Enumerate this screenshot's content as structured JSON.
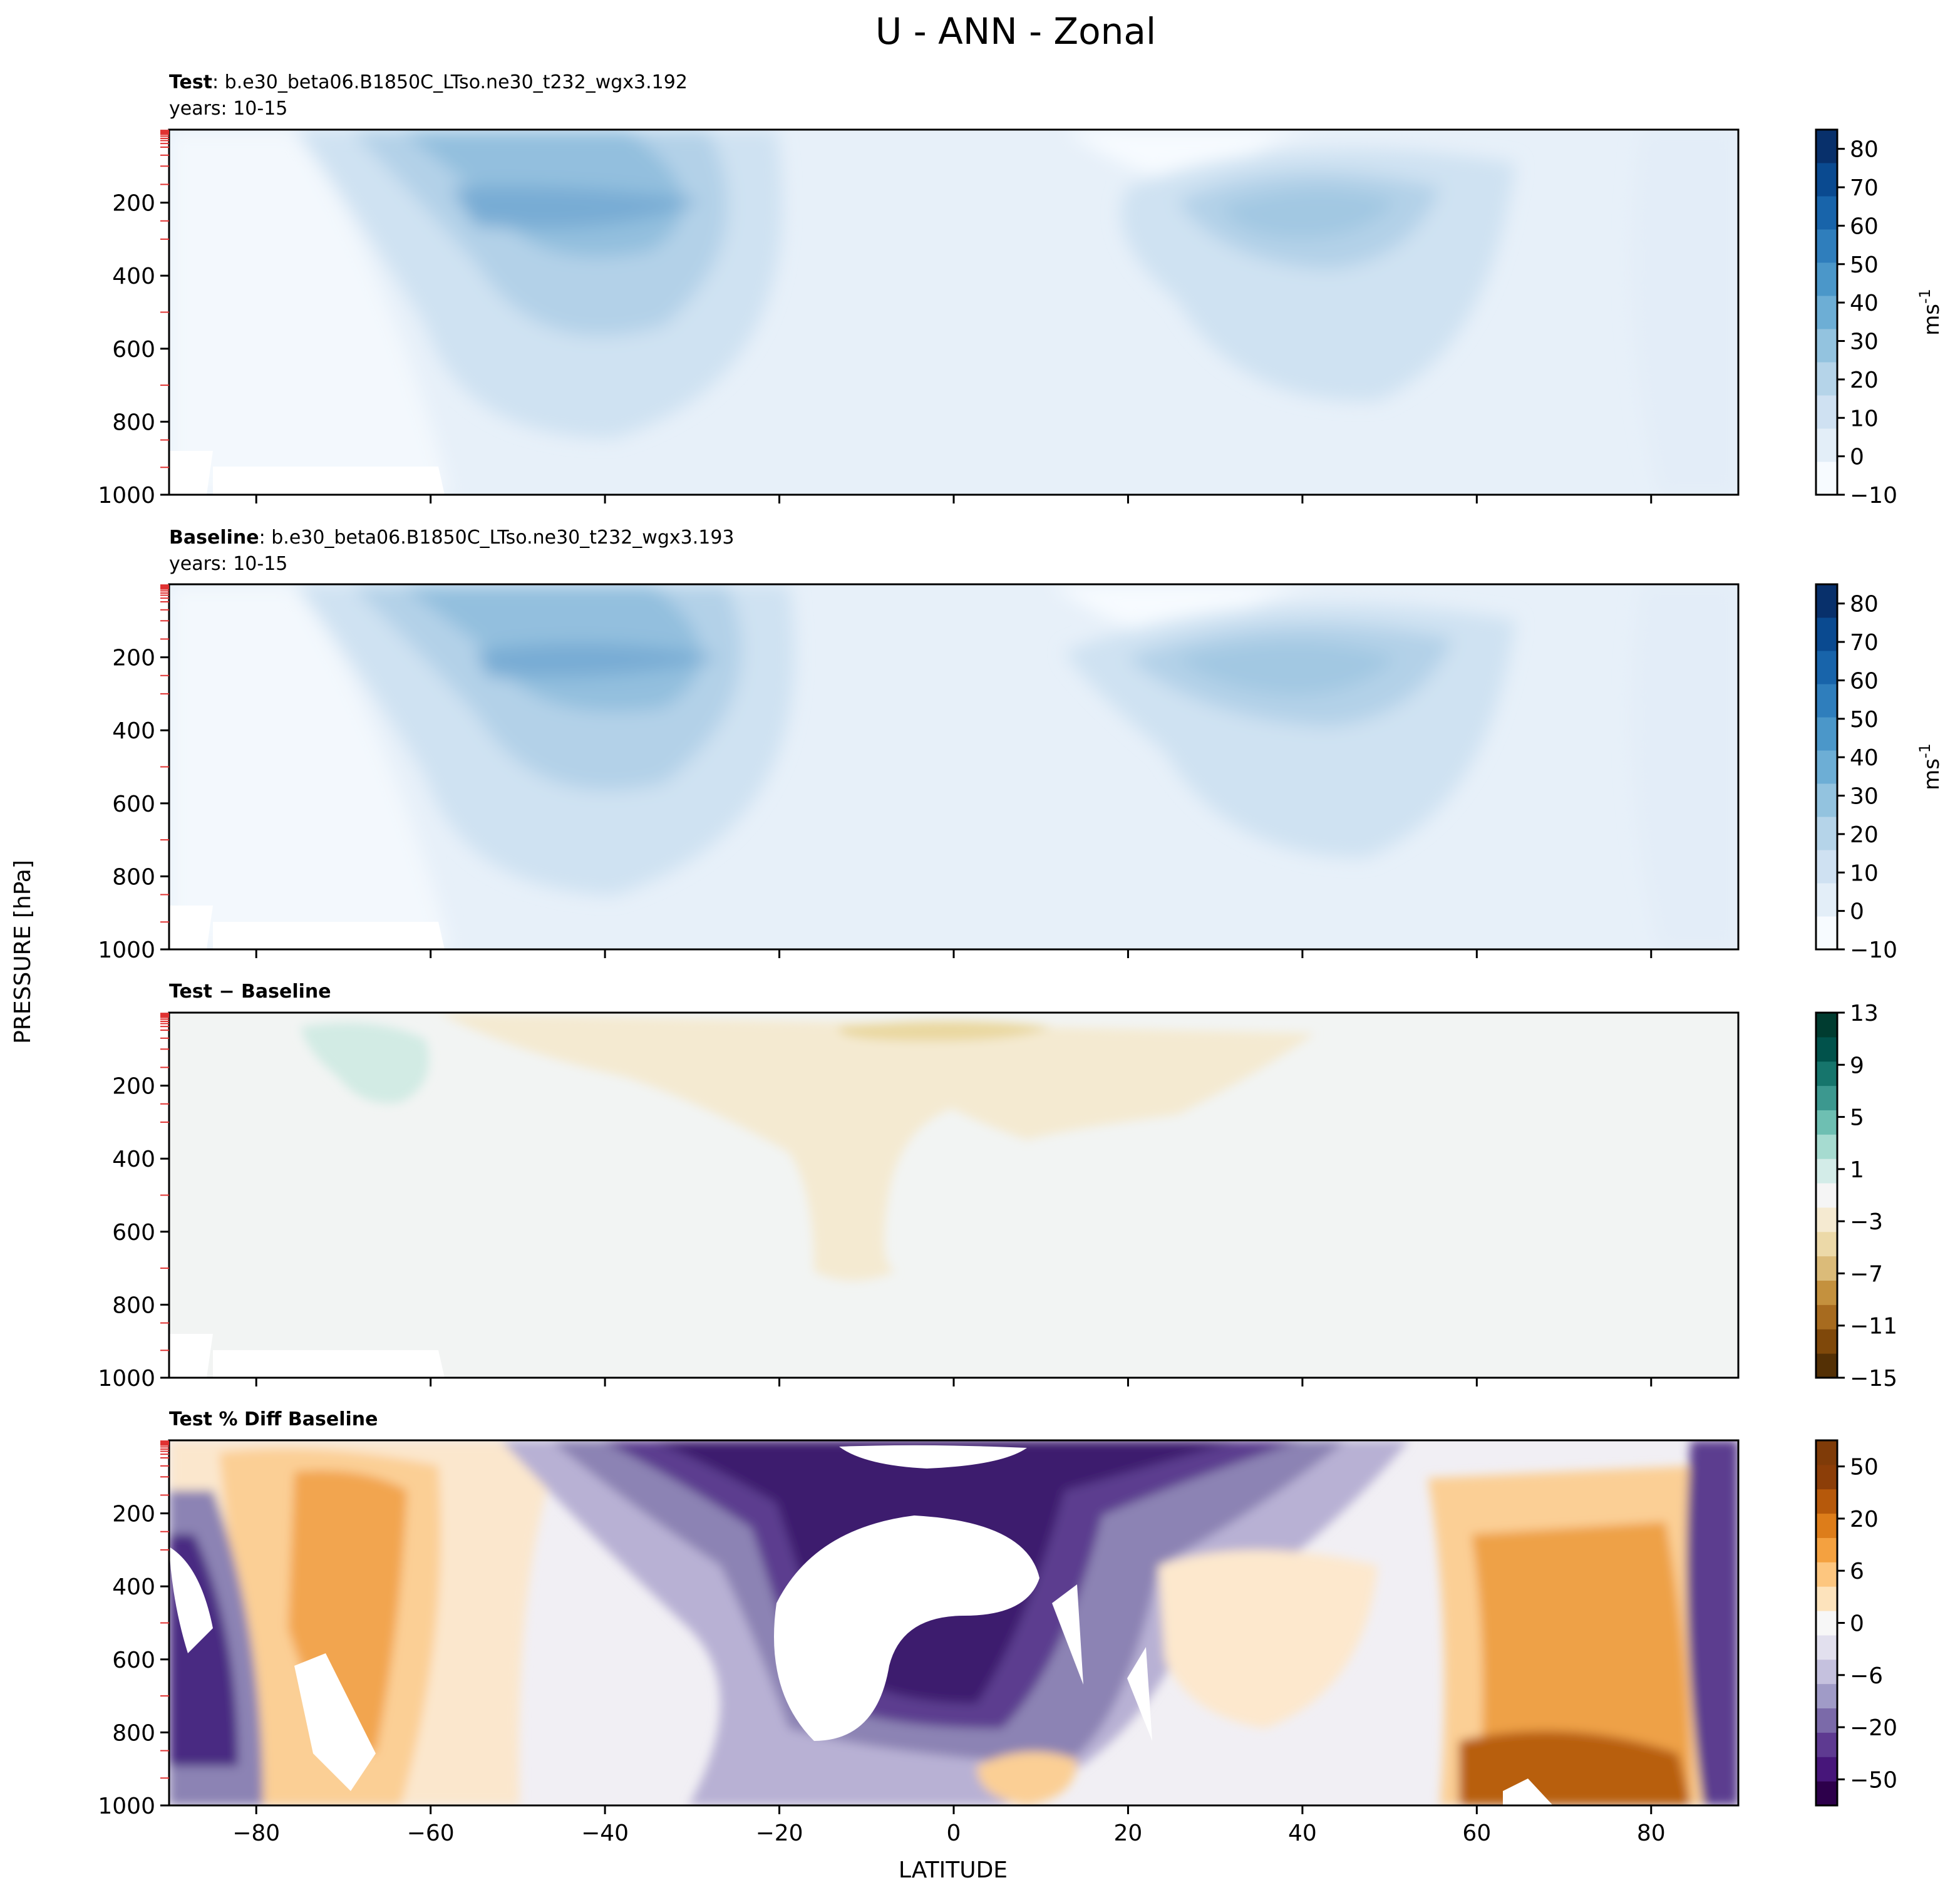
{
  "figure": {
    "title": "U - ANN - Zonal",
    "shared_ylabel": "PRESSURE [hPa]",
    "shared_xlabel": "LATITUDE"
  },
  "chart_data": [
    {
      "id": "test",
      "type": "contourf",
      "title_bold": "Test",
      "title_rest": ": b.e30_beta06.B1850C_LTso.ne30_t232_wgx3.192",
      "subtitle": "years: 10-15",
      "variable": "U",
      "xlim": [
        -90,
        90
      ],
      "ylim": [
        1000,
        0
      ],
      "x_ticks": [
        -80,
        -60,
        -40,
        -20,
        0,
        20,
        40,
        60,
        80
      ],
      "y_ticks": [
        200,
        400,
        600,
        800,
        1000
      ],
      "show_x_tick_labels": false,
      "colormap": "Blues",
      "colorbar_levels": [
        -10,
        0,
        10,
        20,
        30,
        40,
        50,
        60,
        70,
        80
      ],
      "colorbar_vmax": 85,
      "colorbar_label": "ms",
      "colorbar_label_sup": "-1",
      "jets": [
        {
          "lat": -50,
          "pressure": 200,
          "max": 40
        },
        {
          "lat": 40,
          "pressure": 200,
          "max": 30
        }
      ]
    },
    {
      "id": "baseline",
      "type": "contourf",
      "title_bold": "Baseline",
      "title_rest": ": b.e30_beta06.B1850C_LTso.ne30_t232_wgx3.193",
      "subtitle": "years: 10-15",
      "variable": "U",
      "xlim": [
        -90,
        90
      ],
      "ylim": [
        1000,
        0
      ],
      "x_ticks": [
        -80,
        -60,
        -40,
        -20,
        0,
        20,
        40,
        60,
        80
      ],
      "y_ticks": [
        200,
        400,
        600,
        800,
        1000
      ],
      "show_x_tick_labels": false,
      "colormap": "Blues",
      "colorbar_levels": [
        -10,
        0,
        10,
        20,
        30,
        40,
        50,
        60,
        70,
        80
      ],
      "colorbar_vmax": 85,
      "colorbar_label": "ms",
      "colorbar_label_sup": "-1",
      "jets": [
        {
          "lat": -48,
          "pressure": 200,
          "max": 40
        },
        {
          "lat": 38,
          "pressure": 200,
          "max": 30
        }
      ]
    },
    {
      "id": "diff",
      "type": "contourf",
      "title_bold": "Test − Baseline",
      "title_rest": "",
      "subtitle": "",
      "xlim": [
        -90,
        90
      ],
      "ylim": [
        1000,
        0
      ],
      "x_ticks": [
        -80,
        -60,
        -40,
        -20,
        0,
        20,
        40,
        60,
        80
      ],
      "y_ticks": [
        200,
        400,
        600,
        800,
        1000
      ],
      "show_x_tick_labels": false,
      "colormap": "BrBG",
      "colorbar_levels": [
        -15,
        -13,
        -11,
        -9,
        -7,
        -5,
        -3,
        -1,
        1,
        3,
        5,
        7,
        9,
        11,
        13
      ],
      "colorbar_tick_labels": [
        -15,
        -11,
        -7,
        -3,
        1,
        5,
        9,
        13
      ],
      "regions": [
        {
          "desc": "positive anomaly",
          "lat_range": [
            -78,
            -59
          ],
          "pressure_range": [
            50,
            260
          ],
          "value": 2
        },
        {
          "desc": "negative anomaly",
          "lat_range": [
            -55,
            42
          ],
          "pressure_range": [
            0,
            700
          ],
          "value": -2
        }
      ]
    },
    {
      "id": "pctdiff",
      "type": "contourf",
      "title_bold": "Test % Diff Baseline",
      "title_rest": "",
      "subtitle": "",
      "xlim": [
        -90,
        90
      ],
      "ylim": [
        1000,
        0
      ],
      "x_ticks": [
        -80,
        -60,
        -40,
        -20,
        0,
        20,
        40,
        60,
        80
      ],
      "x_tick_labels": [
        "−80",
        "−60",
        "−40",
        "−20",
        "0",
        "20",
        "40",
        "60",
        "80"
      ],
      "y_ticks": [
        200,
        400,
        600,
        800,
        1000
      ],
      "show_x_tick_labels": true,
      "colormap": "PuOr_r",
      "colorbar_tick_labels": [
        "−50",
        "−20",
        "−6",
        "0",
        "6",
        "20",
        "50"
      ],
      "colorbar_tick_values": [
        -50,
        -20,
        -6,
        0,
        6,
        20,
        50
      ]
    }
  ]
}
